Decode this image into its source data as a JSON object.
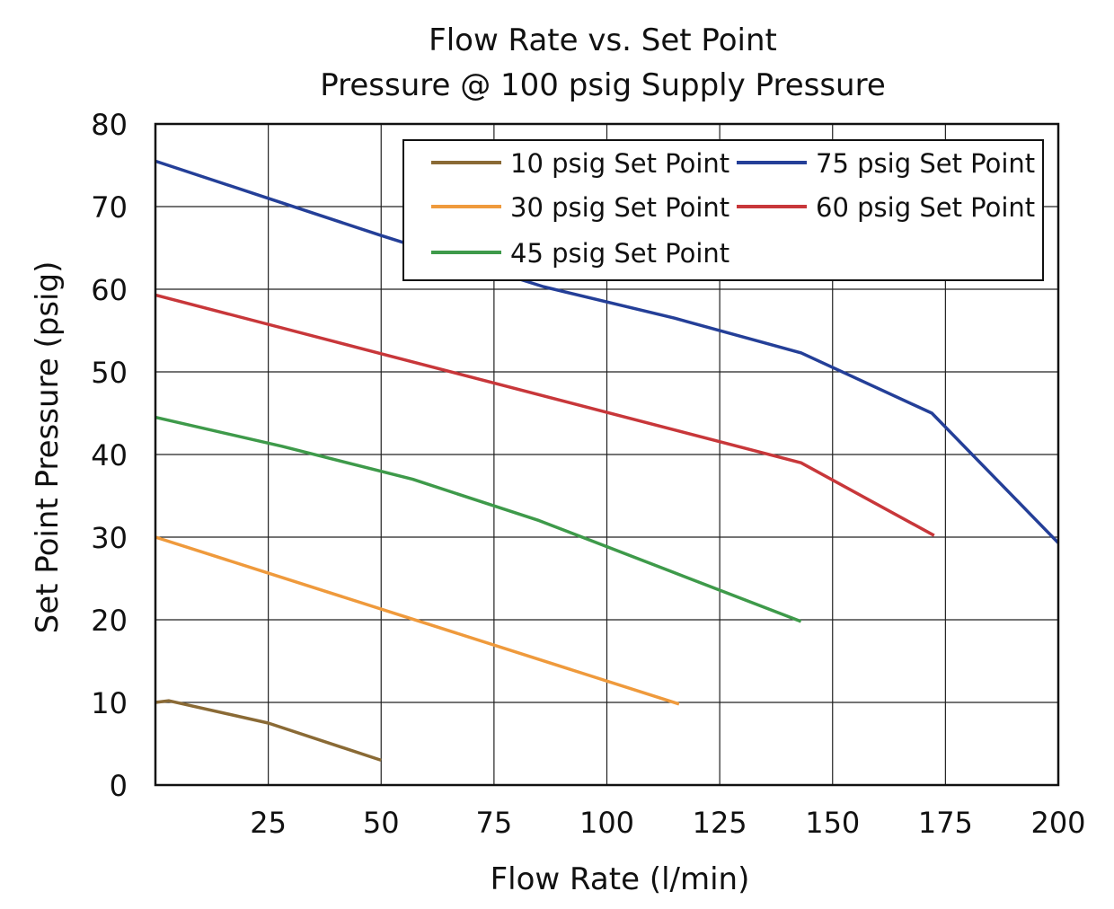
{
  "chart_data": {
    "type": "line",
    "title": [
      "Flow Rate vs. Set Point",
      "Pressure @ 100 psig Supply Pressure"
    ],
    "xlabel": "Flow Rate (l/min)",
    "ylabel": "Set Point Pressure (psig)",
    "xlim": [
      0,
      200
    ],
    "ylim": [
      0,
      80
    ],
    "xticks": [
      25,
      50,
      75,
      100,
      125,
      150,
      175,
      200
    ],
    "yticks": [
      0,
      10,
      20,
      30,
      40,
      50,
      60,
      70,
      80
    ],
    "grid": true,
    "legend_position": "top-right",
    "series": [
      {
        "name": "10 psig Set Point",
        "color": "#8a6a35",
        "x": [
          0,
          3,
          25,
          50
        ],
        "y": [
          10,
          10.2,
          7.5,
          3
        ]
      },
      {
        "name": "30 psig Set Point",
        "color": "#ef9a3c",
        "x": [
          0,
          116
        ],
        "y": [
          30,
          9.8
        ]
      },
      {
        "name": "45 psig Set Point",
        "color": "#3e9a4a",
        "x": [
          0,
          28,
          57,
          85,
          143
        ],
        "y": [
          44.5,
          41,
          37,
          32,
          19.8
        ]
      },
      {
        "name": "75 psig Set Point",
        "color": "#243f98",
        "x": [
          0,
          25,
          50,
          86,
          115,
          143,
          172,
          200
        ],
        "y": [
          75.5,
          71,
          66.5,
          60.3,
          56.5,
          52.3,
          45,
          29.3
        ]
      },
      {
        "name": "60 psig Set Point",
        "color": "#c8373a",
        "x": [
          0,
          50,
          143,
          172.5
        ],
        "y": [
          59.3,
          52.2,
          39,
          30.2
        ]
      }
    ]
  }
}
